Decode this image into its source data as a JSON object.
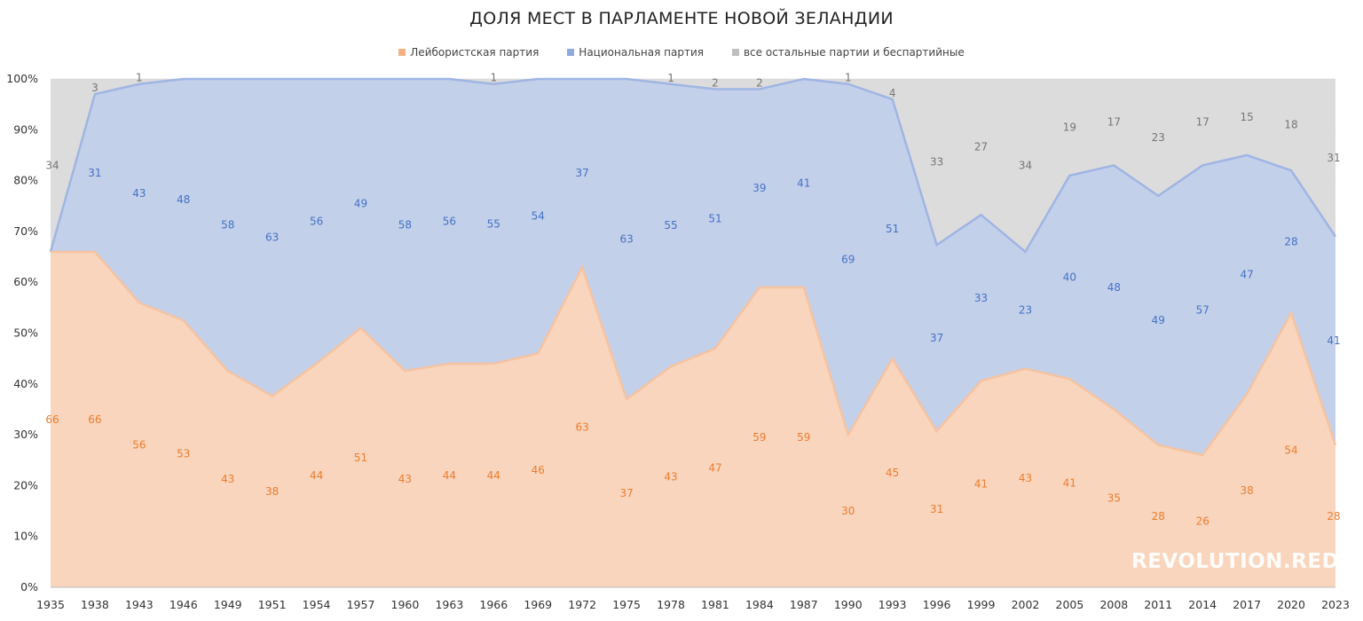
{
  "title": "ДОЛЯ МЕСТ В ПАРЛАМЕНТЕ НОВОЙ ЗЕЛАНДИИ",
  "watermark": "REVOLUTION.RED",
  "colors": {
    "labour_fill": "#f8d5bc",
    "labour_line": "#f5c3a1",
    "labour_label": "#ed7d31",
    "national_fill": "#c3d0ea",
    "national_line": "#9fb5e3",
    "national_label": "#4472c4",
    "others_fill": "#dcdcdc",
    "others_label": "#767676",
    "grid": "#d9d9d9",
    "axis_text": "#333333"
  },
  "chart_data": {
    "type": "area",
    "stacked": true,
    "percent": true,
    "title": "ДОЛЯ МЕСТ В ПАРЛАМЕНТЕ НОВОЙ ЗЕЛАНДИИ",
    "legend_position": "top",
    "grid": true,
    "ylim": [
      0,
      100
    ],
    "y_ticks": [
      "0%",
      "10%",
      "20%",
      "30%",
      "40%",
      "50%",
      "60%",
      "70%",
      "80%",
      "90%",
      "100%"
    ],
    "categories": [
      "1935",
      "1938",
      "1943",
      "1946",
      "1949",
      "1951",
      "1954",
      "1957",
      "1960",
      "1963",
      "1966",
      "1969",
      "1972",
      "1975",
      "1978",
      "1981",
      "1984",
      "1987",
      "1990",
      "1993",
      "1996",
      "1999",
      "2002",
      "2005",
      "2008",
      "2011",
      "2014",
      "2017",
      "2020",
      "2023"
    ],
    "series": [
      {
        "name": "Лейбористская партия",
        "key": "labour",
        "values": [
          66,
          66,
          56,
          53,
          43,
          38,
          44,
          51,
          43,
          44,
          44,
          46,
          63,
          37,
          43,
          47,
          59,
          59,
          30,
          45,
          31,
          41,
          43,
          41,
          35,
          28,
          26,
          38,
          54,
          28
        ]
      },
      {
        "name": "Национальная партия",
        "key": "national",
        "values": [
          0,
          31,
          43,
          48,
          58,
          63,
          56,
          49,
          58,
          56,
          55,
          54,
          37,
          63,
          55,
          51,
          39,
          41,
          69,
          51,
          37,
          33,
          23,
          40,
          48,
          49,
          57,
          47,
          28,
          41
        ]
      },
      {
        "name": "все остальные партии и беспартийные",
        "key": "others",
        "values": [
          34,
          3,
          1,
          0,
          0,
          0,
          0,
          0,
          0,
          0,
          1,
          0,
          0,
          0,
          1,
          2,
          2,
          0,
          1,
          4,
          33,
          27,
          34,
          19,
          17,
          23,
          17,
          15,
          18,
          31
        ]
      }
    ]
  }
}
